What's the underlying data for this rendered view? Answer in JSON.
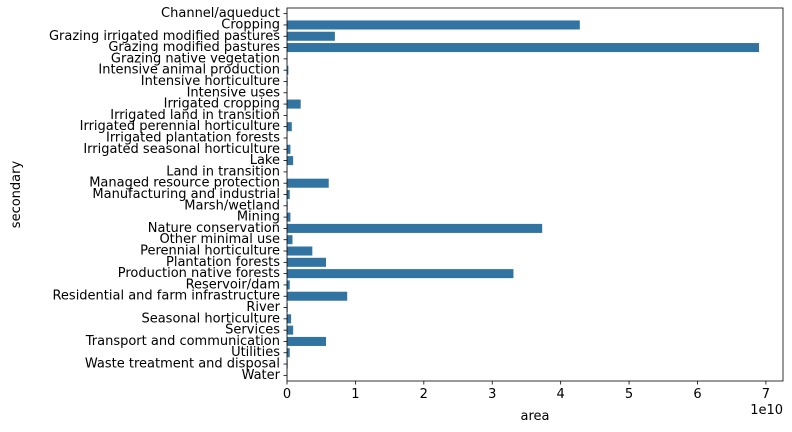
{
  "chart_data": {
    "type": "bar",
    "orientation": "horizontal",
    "xlabel": "area",
    "ylabel": "secondary",
    "x_offset_label": "1e10",
    "xlim": [
      0,
      72500000000
    ],
    "xticks": [
      0,
      10000000000,
      20000000000,
      30000000000,
      40000000000,
      50000000000,
      60000000000,
      70000000000
    ],
    "xtick_labels": [
      "0",
      "1",
      "2",
      "3",
      "4",
      "5",
      "6",
      "7"
    ],
    "grid": false,
    "bar_color": "#3274a1",
    "categories": [
      "Channel/aqueduct",
      "Cropping",
      "Grazing irrigated modified pastures",
      "Grazing modified pastures",
      "Grazing native vegetation",
      "Intensive animal production",
      "Intensive horticulture",
      "Intensive uses",
      "Irrigated cropping",
      "Irrigated land in transition",
      "Irrigated perennial horticulture",
      "Irrigated plantation forests",
      "Irrigated seasonal horticulture",
      "Lake",
      "Land in transition",
      "Managed resource protection",
      "Manufacturing and industrial",
      "Marsh/wetland",
      "Mining",
      "Nature conservation",
      "Other minimal use",
      "Perennial horticulture",
      "Plantation forests",
      "Production native forests",
      "Reservoir/dam",
      "Residential and farm infrastructure",
      "River",
      "Seasonal horticulture",
      "Services",
      "Transport and communication",
      "Utilities",
      "Waste treatment and disposal",
      "Water"
    ],
    "values": [
      50000000,
      42800000000,
      7000000000,
      69000000000,
      50000000,
      200000000,
      100000000,
      50000000,
      2000000000,
      50000000,
      700000000,
      50000000,
      500000000,
      900000000,
      50000000,
      6100000000,
      400000000,
      100000000,
      500000000,
      37300000000,
      800000000,
      3700000000,
      5700000000,
      33100000000,
      400000000,
      8800000000,
      100000000,
      600000000,
      900000000,
      5700000000,
      400000000,
      100000000,
      50000000
    ]
  }
}
